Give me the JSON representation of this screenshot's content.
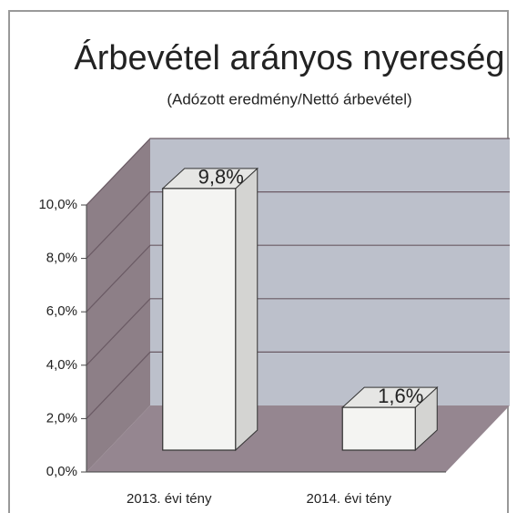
{
  "chart_data": {
    "type": "bar3d",
    "title": "Árbevétel arányos nyereség",
    "subtitle": "(Adózott eredmény/Nettó árbevétel)",
    "categories": [
      "2013. évi tény",
      "2014. évi tény"
    ],
    "values": [
      9.8,
      1.6
    ],
    "value_labels": [
      "9,8%",
      "1,6%"
    ],
    "color": "#f4f4f2",
    "ylim": [
      0,
      10
    ],
    "yticks": [
      {
        "value": 0,
        "label": "0,0%"
      },
      {
        "value": 2,
        "label": "2,0%"
      },
      {
        "value": 4,
        "label": "4,0%"
      },
      {
        "value": 6,
        "label": "6,0%"
      },
      {
        "value": 8,
        "label": "8,0%"
      },
      {
        "value": 10,
        "label": "10,0%"
      }
    ],
    "grid": true
  }
}
